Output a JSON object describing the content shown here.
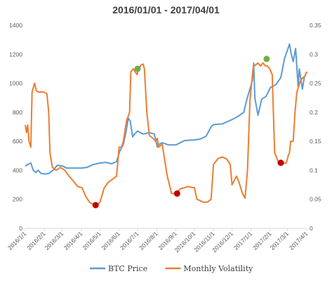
{
  "chart_data": {
    "type": "line",
    "title": "2016/01/01 - 2017/04/01",
    "x_start": "2016-01-01",
    "x_end": "2017-04-01",
    "x_tick_labels": [
      "2016/1/1",
      "2016/2/1",
      "2016/3/1",
      "2016/4/1",
      "2016/5/1",
      "2016/6/1",
      "2016/7/1",
      "2016/8/1",
      "2016/9/1",
      "2016/10/1",
      "2016/11/1",
      "2016/12/1",
      "2017/1/1",
      "2017/2/1",
      "2017/3/1",
      "2017/4/1"
    ],
    "x_tick_dates": [
      "2016-01-01",
      "2016-02-01",
      "2016-03-01",
      "2016-04-01",
      "2016-05-01",
      "2016-06-01",
      "2016-07-01",
      "2016-08-01",
      "2016-09-01",
      "2016-10-01",
      "2016-11-01",
      "2016-12-01",
      "2017-01-01",
      "2017-02-01",
      "2017-03-01",
      "2017-04-01"
    ],
    "y_left": {
      "range": [
        0,
        1400
      ],
      "ticks": [
        0,
        200,
        400,
        600,
        800,
        1000,
        1200,
        1400
      ]
    },
    "y_right": {
      "range": [
        0,
        0.35
      ],
      "ticks": [
        0,
        0.05,
        0.1,
        0.15,
        0.2,
        0.25,
        0.3,
        0.35
      ]
    },
    "grid": false,
    "legend_position": "bottom",
    "series": [
      {
        "name": "BTC Price",
        "axis": "left",
        "color": "#5B9BD5",
        "points": [
          [
            "2016-01-01",
            430
          ],
          [
            "2016-01-05",
            440
          ],
          [
            "2016-01-10",
            450
          ],
          [
            "2016-01-14",
            400
          ],
          [
            "2016-01-18",
            385
          ],
          [
            "2016-01-22",
            400
          ],
          [
            "2016-01-26",
            380
          ],
          [
            "2016-02-01",
            375
          ],
          [
            "2016-02-08",
            378
          ],
          [
            "2016-02-15",
            400
          ],
          [
            "2016-02-22",
            435
          ],
          [
            "2016-03-01",
            430
          ],
          [
            "2016-03-08",
            415
          ],
          [
            "2016-03-15",
            415
          ],
          [
            "2016-03-22",
            415
          ],
          [
            "2016-04-01",
            415
          ],
          [
            "2016-04-10",
            420
          ],
          [
            "2016-04-20",
            440
          ],
          [
            "2016-05-01",
            450
          ],
          [
            "2016-05-10",
            455
          ],
          [
            "2016-05-20",
            445
          ],
          [
            "2016-05-28",
            460
          ],
          [
            "2016-06-02",
            530
          ],
          [
            "2016-06-08",
            580
          ],
          [
            "2016-06-12",
            660
          ],
          [
            "2016-06-16",
            760
          ],
          [
            "2016-06-19",
            740
          ],
          [
            "2016-06-23",
            630
          ],
          [
            "2016-06-26",
            650
          ],
          [
            "2016-07-01",
            670
          ],
          [
            "2016-07-10",
            650
          ],
          [
            "2016-07-20",
            660
          ],
          [
            "2016-07-28",
            650
          ],
          [
            "2016-08-02",
            560
          ],
          [
            "2016-08-05",
            580
          ],
          [
            "2016-08-10",
            590
          ],
          [
            "2016-08-20",
            575
          ],
          [
            "2016-09-01",
            575
          ],
          [
            "2016-09-15",
            605
          ],
          [
            "2016-10-01",
            610
          ],
          [
            "2016-10-10",
            615
          ],
          [
            "2016-10-20",
            635
          ],
          [
            "2016-10-28",
            700
          ],
          [
            "2016-11-01",
            715
          ],
          [
            "2016-11-15",
            720
          ],
          [
            "2016-12-01",
            750
          ],
          [
            "2016-12-10",
            770
          ],
          [
            "2016-12-20",
            800
          ],
          [
            "2016-12-25",
            890
          ],
          [
            "2016-12-30",
            960
          ],
          [
            "2017-01-03",
            1020
          ],
          [
            "2017-01-05",
            1140
          ],
          [
            "2017-01-07",
            900
          ],
          [
            "2017-01-12",
            780
          ],
          [
            "2017-01-18",
            890
          ],
          [
            "2017-01-25",
            910
          ],
          [
            "2017-02-01",
            970
          ],
          [
            "2017-02-10",
            990
          ],
          [
            "2017-02-18",
            1040
          ],
          [
            "2017-02-24",
            1170
          ],
          [
            "2017-03-01",
            1230
          ],
          [
            "2017-03-04",
            1270
          ],
          [
            "2017-03-07",
            1200
          ],
          [
            "2017-03-10",
            1150
          ],
          [
            "2017-03-14",
            1240
          ],
          [
            "2017-03-18",
            980
          ],
          [
            "2017-03-20",
            1100
          ],
          [
            "2017-03-22",
            1040
          ],
          [
            "2017-03-25",
            960
          ],
          [
            "2017-03-28",
            1040
          ],
          [
            "2017-04-01",
            1080
          ]
        ]
      },
      {
        "name": "Monthly Volatility",
        "axis": "right",
        "color": "#ED7D31",
        "points": [
          [
            "2016-01-01",
            0.178
          ],
          [
            "2016-01-03",
            0.165
          ],
          [
            "2016-01-05",
            0.178
          ],
          [
            "2016-01-07",
            0.15
          ],
          [
            "2016-01-10",
            0.14
          ],
          [
            "2016-01-12",
            0.235
          ],
          [
            "2016-01-16",
            0.25
          ],
          [
            "2016-01-19",
            0.237
          ],
          [
            "2016-01-23",
            0.235
          ],
          [
            "2016-01-27",
            0.235
          ],
          [
            "2016-01-31",
            0.235
          ],
          [
            "2016-02-05",
            0.232
          ],
          [
            "2016-02-08",
            0.2
          ],
          [
            "2016-02-10",
            0.13
          ],
          [
            "2016-02-14",
            0.105
          ],
          [
            "2016-02-20",
            0.1
          ],
          [
            "2016-02-27",
            0.105
          ],
          [
            "2016-03-05",
            0.1
          ],
          [
            "2016-03-12",
            0.09
          ],
          [
            "2016-03-20",
            0.08
          ],
          [
            "2016-03-26",
            0.072
          ],
          [
            "2016-04-02",
            0.07
          ],
          [
            "2016-04-08",
            0.055
          ],
          [
            "2016-04-14",
            0.045
          ],
          [
            "2016-04-22",
            0.04
          ],
          [
            "2016-04-26",
            0.04
          ],
          [
            "2016-05-01",
            0.045
          ],
          [
            "2016-05-08",
            0.07
          ],
          [
            "2016-05-15",
            0.08
          ],
          [
            "2016-05-22",
            0.085
          ],
          [
            "2016-05-28",
            0.09
          ],
          [
            "2016-06-01",
            0.14
          ],
          [
            "2016-06-05",
            0.14
          ],
          [
            "2016-06-08",
            0.15
          ],
          [
            "2016-06-13",
            0.185
          ],
          [
            "2016-06-18",
            0.2
          ],
          [
            "2016-06-20",
            0.27
          ],
          [
            "2016-06-24",
            0.275
          ],
          [
            "2016-06-30",
            0.265
          ],
          [
            "2016-07-03",
            0.275
          ],
          [
            "2016-07-07",
            0.282
          ],
          [
            "2016-07-10",
            0.283
          ],
          [
            "2016-07-12",
            0.275
          ],
          [
            "2016-07-16",
            0.2
          ],
          [
            "2016-07-20",
            0.16
          ],
          [
            "2016-07-26",
            0.155
          ],
          [
            "2016-07-30",
            0.15
          ],
          [
            "2016-08-02",
            0.155
          ],
          [
            "2016-08-04",
            0.14
          ],
          [
            "2016-08-10",
            0.145
          ],
          [
            "2016-08-15",
            0.11
          ],
          [
            "2016-08-18",
            0.09
          ],
          [
            "2016-08-25",
            0.06
          ],
          [
            "2016-09-01",
            0.06
          ],
          [
            "2016-09-08",
            0.068
          ],
          [
            "2016-09-15",
            0.07
          ],
          [
            "2016-09-20",
            0.072
          ],
          [
            "2016-09-25",
            0.071
          ],
          [
            "2016-10-01",
            0.07
          ],
          [
            "2016-10-05",
            0.05
          ],
          [
            "2016-10-10",
            0.048
          ],
          [
            "2016-10-15",
            0.045
          ],
          [
            "2016-10-22",
            0.045
          ],
          [
            "2016-10-28",
            0.05
          ],
          [
            "2016-11-01",
            0.11
          ],
          [
            "2016-11-08",
            0.12
          ],
          [
            "2016-11-15",
            0.123
          ],
          [
            "2016-11-22",
            0.12
          ],
          [
            "2016-11-28",
            0.11
          ],
          [
            "2016-12-01",
            0.075
          ],
          [
            "2016-12-08",
            0.09
          ],
          [
            "2016-12-12",
            0.08
          ],
          [
            "2016-12-18",
            0.06
          ],
          [
            "2016-12-22",
            0.052
          ],
          [
            "2016-12-26",
            0.1
          ],
          [
            "2016-12-30",
            0.22
          ],
          [
            "2017-01-04",
            0.275
          ],
          [
            "2017-01-06",
            0.28
          ],
          [
            "2017-01-12",
            0.285
          ],
          [
            "2017-01-16",
            0.28
          ],
          [
            "2017-01-20",
            0.285
          ],
          [
            "2017-01-24",
            0.28
          ],
          [
            "2017-01-27",
            0.28
          ],
          [
            "2017-01-31",
            0.275
          ],
          [
            "2017-02-04",
            0.265
          ],
          [
            "2017-02-08",
            0.13
          ],
          [
            "2017-02-12",
            0.12
          ],
          [
            "2017-02-15",
            0.11
          ],
          [
            "2017-02-19",
            0.112
          ],
          [
            "2017-02-23",
            0.112
          ],
          [
            "2017-02-27",
            0.113
          ],
          [
            "2017-03-02",
            0.125
          ],
          [
            "2017-03-04",
            0.13
          ],
          [
            "2017-03-06",
            0.15
          ],
          [
            "2017-03-10",
            0.15
          ],
          [
            "2017-03-13",
            0.2
          ],
          [
            "2017-03-16",
            0.235
          ],
          [
            "2017-03-19",
            0.245
          ],
          [
            "2017-03-22",
            0.255
          ],
          [
            "2017-03-26",
            0.26
          ],
          [
            "2017-03-29",
            0.262
          ],
          [
            "2017-04-01",
            0.27
          ]
        ]
      }
    ],
    "markers": [
      {
        "color": "#70AD47",
        "date": "2016-07-01",
        "axis": "right",
        "value": 0.275
      },
      {
        "color": "#70AD47",
        "date": "2017-01-26",
        "axis": "right",
        "value": 0.292
      },
      {
        "color": "#C00000",
        "date": "2016-04-24",
        "axis": "right",
        "value": 0.04
      },
      {
        "color": "#C00000",
        "date": "2016-09-03",
        "axis": "right",
        "value": 0.06
      },
      {
        "color": "#C00000",
        "date": "2017-02-18",
        "axis": "right",
        "value": 0.113
      }
    ]
  }
}
